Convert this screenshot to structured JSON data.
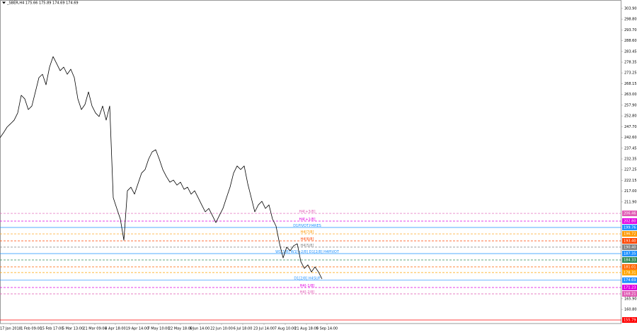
{
  "chart_data": {
    "type": "line",
    "title": "_SBER,H4 175.66 175.89 174.69 174.69",
    "color": "#000000",
    "values": [
      242.4,
      244.8,
      247.5,
      249.1,
      250.8,
      254.2,
      262.6,
      260.9,
      255.8,
      257.5,
      264.2,
      271,
      272.6,
      267.6,
      276,
      281,
      277.7,
      274.3,
      276,
      272.6,
      275,
      271,
      260.9,
      255.8,
      258.2,
      264.2,
      257.5,
      254.2,
      252.5,
      257.5,
      250.8,
      257.5,
      213.9,
      208.8,
      203.8,
      193.7,
      217.2,
      218.9,
      215.6,
      220.6,
      225.6,
      227.3,
      232.3,
      235.7,
      236.7,
      232.3,
      227.3,
      224,
      221.3,
      222.3,
      219.9,
      221.3,
      217.9,
      218.9,
      215.6,
      217.2,
      213.9,
      210.5,
      207.2,
      208.8,
      205.5,
      202.1,
      205.5,
      208.8,
      213.9,
      218.9,
      225.6,
      229,
      227.3,
      229,
      220.6,
      213.9,
      207.2,
      210.5,
      212.2,
      208.8,
      210.5,
      203.8,
      200.4,
      192,
      185.3,
      190.4,
      188.7,
      191.1,
      192,
      183.6,
      180.3,
      182,
      178.6,
      181,
      178.6,
      175.3
    ],
    "xlim": [
      0,
      175.6
    ],
    "xticks": [
      {
        "value": 3,
        "label": "17 Jan 2018"
      },
      {
        "value": 8.8,
        "label": "1 Feb 09:00"
      },
      {
        "value": 14.6,
        "label": "15 Feb 17:00"
      },
      {
        "value": 20.6,
        "label": "5 Mar 13:00"
      },
      {
        "value": 26.8,
        "label": "21 Mar 09:00"
      },
      {
        "value": 32.6,
        "label": "4 Apr 18:00"
      },
      {
        "value": 38.8,
        "label": "19 Apr 14:00"
      },
      {
        "value": 44.8,
        "label": "7 May 10:00"
      },
      {
        "value": 51,
        "label": "22 May 18:00"
      },
      {
        "value": 56.4,
        "label": "6 Jun 14:00"
      },
      {
        "value": 62.6,
        "label": "22 Jun 10:00"
      },
      {
        "value": 68.6,
        "label": "6 Jul 18:00"
      },
      {
        "value": 74.6,
        "label": "23 Jul 14:00"
      },
      {
        "value": 80.6,
        "label": "7 Aug 10:00"
      },
      {
        "value": 86.6,
        "label": "21 Aug 18:00"
      },
      {
        "value": 92.4,
        "label": "5 Sep 14:00"
      }
    ],
    "ylim": [
      154.1,
      307.9
    ],
    "yticks": [
      {
        "value": 303.9,
        "label": "303.90"
      },
      {
        "value": 298.8,
        "label": "298.80"
      },
      {
        "value": 293.7,
        "label": "293.70"
      },
      {
        "value": 288.6,
        "label": "288.60"
      },
      {
        "value": 283.45,
        "label": "283.45"
      },
      {
        "value": 278.35,
        "label": "278.35"
      },
      {
        "value": 273.25,
        "label": "273.25"
      },
      {
        "value": 268.15,
        "label": "268.15"
      },
      {
        "value": 263,
        "label": "263.00"
      },
      {
        "value": 257.9,
        "label": "257.90"
      },
      {
        "value": 252.8,
        "label": "252.80"
      },
      {
        "value": 247.7,
        "label": "247.70"
      },
      {
        "value": 242.6,
        "label": "242.60"
      },
      {
        "value": 237.45,
        "label": "237.45"
      },
      {
        "value": 232.35,
        "label": "232.35"
      },
      {
        "value": 227.25,
        "label": "227.25"
      },
      {
        "value": 222.15,
        "label": "222.15"
      },
      {
        "value": 217,
        "label": "217.00"
      },
      {
        "value": 211.9,
        "label": "211.90"
      },
      {
        "value": 165.9,
        "label": "165.90"
      },
      {
        "value": 160.8,
        "label": "160.80"
      }
    ],
    "grid": false,
    "levels": [
      {
        "name": "H4[+3/8]",
        "value": 206.46,
        "value_label": "206.46",
        "color": "#e05ab4",
        "dash": true
      },
      {
        "name": "H4[+1/8]",
        "value": 202.8,
        "value_label": "202.80",
        "color": "#e000e0",
        "dash": true
      },
      {
        "name": "D1PIVOT.H4RES",
        "value": 199.76,
        "value_label": "199.76",
        "color": "#1e90ff",
        "dash": false
      },
      {
        "name": "H4[7/8]",
        "value": 196.72,
        "value_label": "196.72",
        "color": "#ff9900",
        "dash": true
      },
      {
        "name": "H4[6/8]",
        "value": 193.4,
        "value_label": "193.40",
        "color": "#ff4500",
        "dash": true
      },
      {
        "name": "H4[5/8]",
        "value": 190.4,
        "value_label": "190.40",
        "color": "#808080",
        "dash": true
      },
      {
        "name": "W1[3/8] W1[+2/8] D1[2/8] H4PIVOT",
        "value": 187.35,
        "value_label": "187.35",
        "color": "#1e90ff",
        "dash": false
      },
      {
        "value": 184.33,
        "value_label": "184.33",
        "color": "#2e8b57",
        "dash": true
      },
      {
        "value": 181.01,
        "value_label": "181.01",
        "color": "#ff6600",
        "dash": true
      },
      {
        "value": 178.31,
        "value_label": "178.31",
        "color": "#ffa500",
        "dash": true
      },
      {
        "name": "D1[2/8] H4SUP",
        "value": 174.69,
        "value_label": "174.69",
        "color": "#1e90ff",
        "dash": false
      },
      {
        "name": "H4[-1/8]",
        "value": 171.23,
        "value_label": "171.23",
        "color": "#e000e0",
        "dash": true
      },
      {
        "name": "H4[-2/8]",
        "value": 168.21,
        "value_label": "168.21",
        "color": "#e05ab4",
        "dash": true
      },
      {
        "value": 155.79,
        "value_label": "155.79",
        "color": "#ff0000",
        "dash": false
      }
    ]
  }
}
